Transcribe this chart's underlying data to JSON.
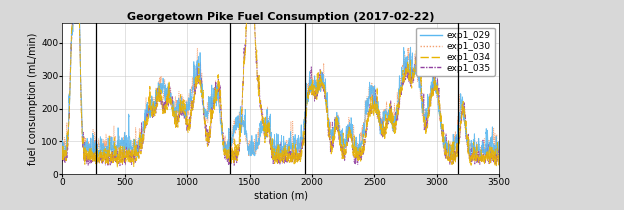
{
  "title": "Georgetown Pike Fuel Consumption (2017-02-22)",
  "xlabel": "station (m)",
  "ylabel": "fuel consumption (mL/min)",
  "xlim": [
    0,
    3500
  ],
  "ylim": [
    0,
    460
  ],
  "yticks": [
    0,
    100,
    200,
    300,
    400
  ],
  "xticks": [
    0,
    500,
    1000,
    1500,
    2000,
    2500,
    3000,
    3500
  ],
  "vlines": [
    270,
    1340,
    1940,
    3170
  ],
  "series": [
    {
      "label": "exp1_029",
      "color": "#5bb8f0",
      "linewidth": 0.6,
      "zorder": 3
    },
    {
      "label": "exp1_030",
      "color": "#f4a070",
      "linewidth": 0.6,
      "zorder": 2
    },
    {
      "label": "exp1_034",
      "color": "#e8b400",
      "linewidth": 0.7,
      "zorder": 4
    },
    {
      "label": "exp1_035",
      "color": "#9040a0",
      "linewidth": 0.6,
      "zorder": 2
    }
  ],
  "legend_loc": "upper right",
  "legend_fontsize": 6.5,
  "title_fontsize": 8,
  "axis_fontsize": 7,
  "tick_fontsize": 6.5,
  "grid": true,
  "grid_color": "#cccccc",
  "plot_bg": "#ffffff",
  "fig_bg": "#d8d8d8",
  "seed": 42,
  "n_points": 3500
}
